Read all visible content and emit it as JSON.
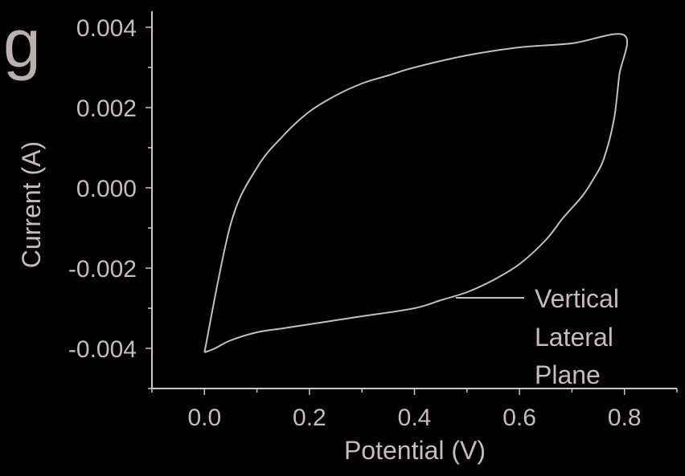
{
  "panel_label": "g",
  "chart_data": {
    "type": "line",
    "xlabel": "Potential (V)",
    "ylabel": "Current (A)",
    "xlim": [
      -0.1,
      0.9
    ],
    "ylim": [
      -0.005,
      0.0044
    ],
    "x_ticks": [
      0.0,
      0.2,
      0.4,
      0.6,
      0.8
    ],
    "x_tick_labels": [
      "0.0",
      "0.2",
      "0.4",
      "0.6",
      "0.8"
    ],
    "y_ticks": [
      0.004,
      0.002,
      0.0,
      -0.002,
      -0.004
    ],
    "y_tick_labels": [
      "0.004",
      "0.002",
      "0.000",
      "-0.002",
      "-0.004"
    ],
    "grid": false,
    "legend_position": "bottom-right",
    "legend_lines": [
      "Vertical",
      "Lateral",
      "Plane"
    ],
    "line_color": "#c9bdbd",
    "series": [
      {
        "name": "Vertical Lateral Plane",
        "x": [
          0.0,
          0.05,
          0.1,
          0.15,
          0.2,
          0.25,
          0.3,
          0.35,
          0.4,
          0.5,
          0.6,
          0.7,
          0.8,
          0.79,
          0.78,
          0.76,
          0.74,
          0.72,
          0.7,
          0.68,
          0.65,
          0.6,
          0.55,
          0.5,
          0.45,
          0.4,
          0.3,
          0.2,
          0.15,
          0.1,
          0.05,
          0.02,
          0.0
        ],
        "y": [
          -0.0041,
          -0.0009,
          0.0005,
          0.0013,
          0.0019,
          0.0023,
          0.0026,
          0.0028,
          0.003,
          0.0033,
          0.0035,
          0.0036,
          0.0038,
          0.0028,
          0.0017,
          0.0007,
          0.0002,
          -0.0002,
          -0.0005,
          -0.0008,
          -0.0013,
          -0.0019,
          -0.0023,
          -0.0026,
          -0.0028,
          -0.003,
          -0.0032,
          -0.0034,
          -0.0035,
          -0.0036,
          -0.0038,
          -0.004,
          -0.0041
        ]
      }
    ]
  }
}
